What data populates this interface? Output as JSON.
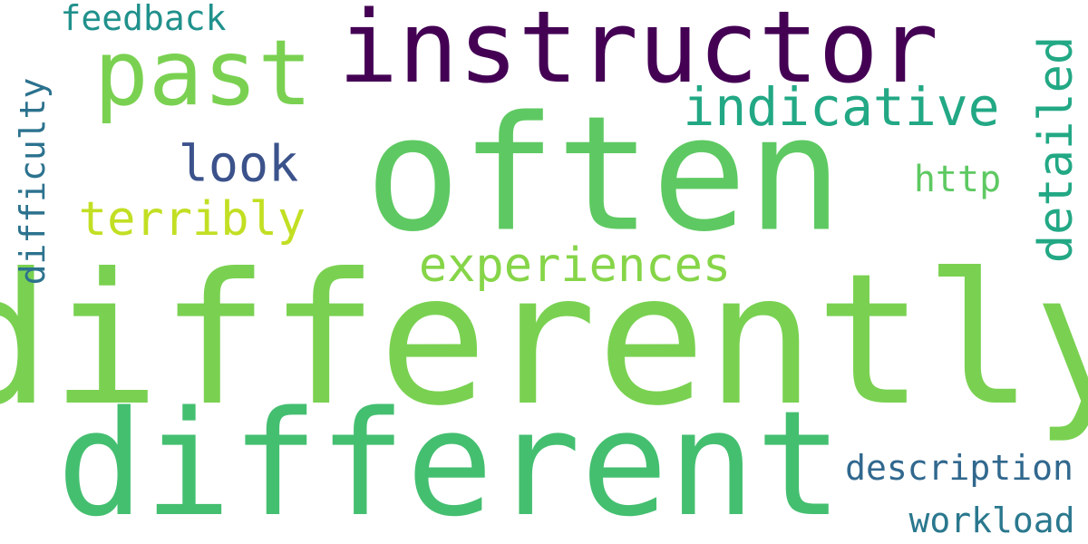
{
  "background_color": "#ffffff",
  "words": {
    "differently": {
      "text": "differently",
      "color": "#7ad151",
      "orientation": "horizontal"
    },
    "different": {
      "text": "different",
      "color": "#44bf70",
      "orientation": "horizontal"
    },
    "often": {
      "text": "often",
      "color": "#5ec962",
      "orientation": "horizontal"
    },
    "instructor": {
      "text": "instructor",
      "color": "#440154",
      "orientation": "horizontal"
    },
    "past": {
      "text": "past",
      "color": "#7ad151",
      "orientation": "horizontal"
    },
    "indicative": {
      "text": "indicative",
      "color": "#22a884",
      "orientation": "horizontal"
    },
    "detailed": {
      "text": "detailed",
      "color": "#22a884",
      "orientation": "vertical"
    },
    "look": {
      "text": "look",
      "color": "#3b528b",
      "orientation": "horizontal"
    },
    "terribly": {
      "text": "terribly",
      "color": "#c2df23",
      "orientation": "horizontal"
    },
    "experiences": {
      "text": "experiences",
      "color": "#86d549",
      "orientation": "horizontal"
    },
    "http": {
      "text": "http",
      "color": "#5ec962",
      "orientation": "horizontal"
    },
    "feedback": {
      "text": "feedback",
      "color": "#21918c",
      "orientation": "horizontal"
    },
    "difficulty": {
      "text": "difficulty",
      "color": "#2c728e",
      "orientation": "vertical"
    },
    "description": {
      "text": "description",
      "color": "#31688e",
      "orientation": "horizontal"
    },
    "workload": {
      "text": "workload",
      "color": "#2a788e",
      "orientation": "horizontal"
    }
  }
}
